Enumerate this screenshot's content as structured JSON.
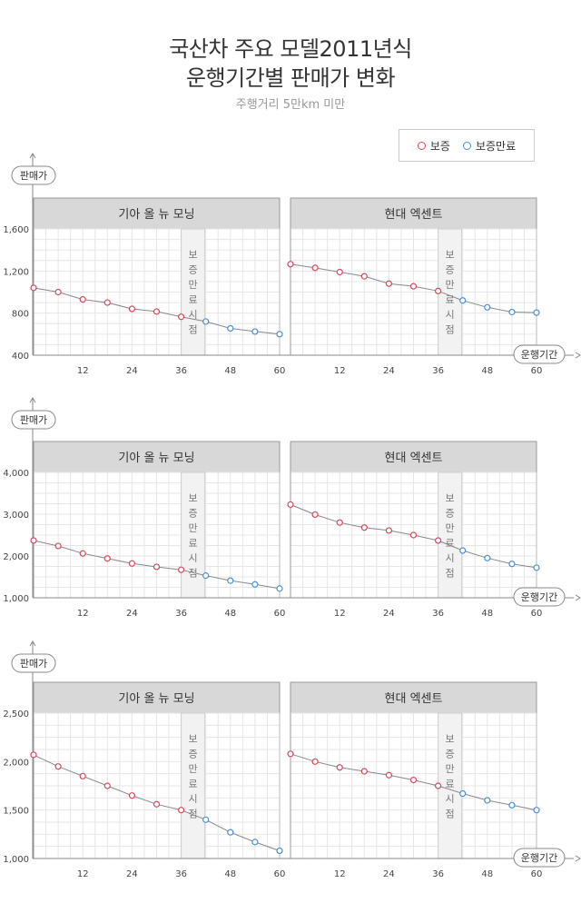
{
  "header": {
    "title_line1": "국산차 주요 모델2011년식",
    "title_line2": "운행기간별 판매가 변화",
    "subtitle": "주행거리 5만km 미만"
  },
  "legend": [
    {
      "label": "보증",
      "color": "#d9475c"
    },
    {
      "label": "보증만료",
      "color": "#4a8fd9"
    }
  ],
  "labels": {
    "y_axis": "판매가",
    "x_axis": "운행기간",
    "warranty_band": "보증만료시점"
  },
  "chart_data": [
    {
      "type": "line",
      "yticks": [
        400,
        800,
        1200,
        1600
      ],
      "ylim": [
        400,
        1600
      ],
      "x": [
        0,
        6,
        12,
        18,
        24,
        30,
        36,
        42,
        48,
        54,
        60
      ],
      "xticks": [
        12,
        24,
        36,
        48,
        60
      ],
      "warranty_end": 36,
      "panels": [
        {
          "name": "기아 올 뉴 모닝",
          "values": [
            1040,
            1000,
            930,
            900,
            840,
            815,
            765,
            720,
            655,
            625,
            600
          ]
        },
        {
          "name": "현대 엑센트",
          "values": [
            1265,
            1230,
            1190,
            1150,
            1080,
            1055,
            1010,
            920,
            855,
            810,
            805
          ]
        }
      ]
    },
    {
      "type": "line",
      "yticks": [
        1000,
        2000,
        3000,
        4000
      ],
      "ylim": [
        1000,
        4000
      ],
      "x": [
        0,
        6,
        12,
        18,
        24,
        30,
        36,
        42,
        48,
        54,
        60
      ],
      "xticks": [
        12,
        24,
        36,
        48,
        60
      ],
      "warranty_end": 36,
      "panels": [
        {
          "name": "기아 올 뉴 모닝",
          "values": [
            2370,
            2240,
            2060,
            1940,
            1820,
            1740,
            1670,
            1530,
            1410,
            1320,
            1220
          ]
        },
        {
          "name": "현대 엑센트",
          "values": [
            3230,
            2990,
            2800,
            2680,
            2610,
            2500,
            2370,
            2130,
            1950,
            1810,
            1720
          ]
        }
      ]
    },
    {
      "type": "line",
      "yticks": [
        1000,
        1500,
        2000,
        2500
      ],
      "ylim": [
        1000,
        2500
      ],
      "x": [
        0,
        6,
        12,
        18,
        24,
        30,
        36,
        42,
        48,
        54,
        60
      ],
      "xticks": [
        12,
        24,
        36,
        48,
        60
      ],
      "warranty_end": 36,
      "panels": [
        {
          "name": "기아 올 뉴 모닝",
          "values": [
            2070,
            1950,
            1850,
            1750,
            1650,
            1560,
            1500,
            1400,
            1270,
            1170,
            1080
          ]
        },
        {
          "name": "현대 엑센트",
          "values": [
            2080,
            2000,
            1940,
            1900,
            1860,
            1810,
            1750,
            1670,
            1600,
            1550,
            1500
          ]
        }
      ]
    }
  ]
}
